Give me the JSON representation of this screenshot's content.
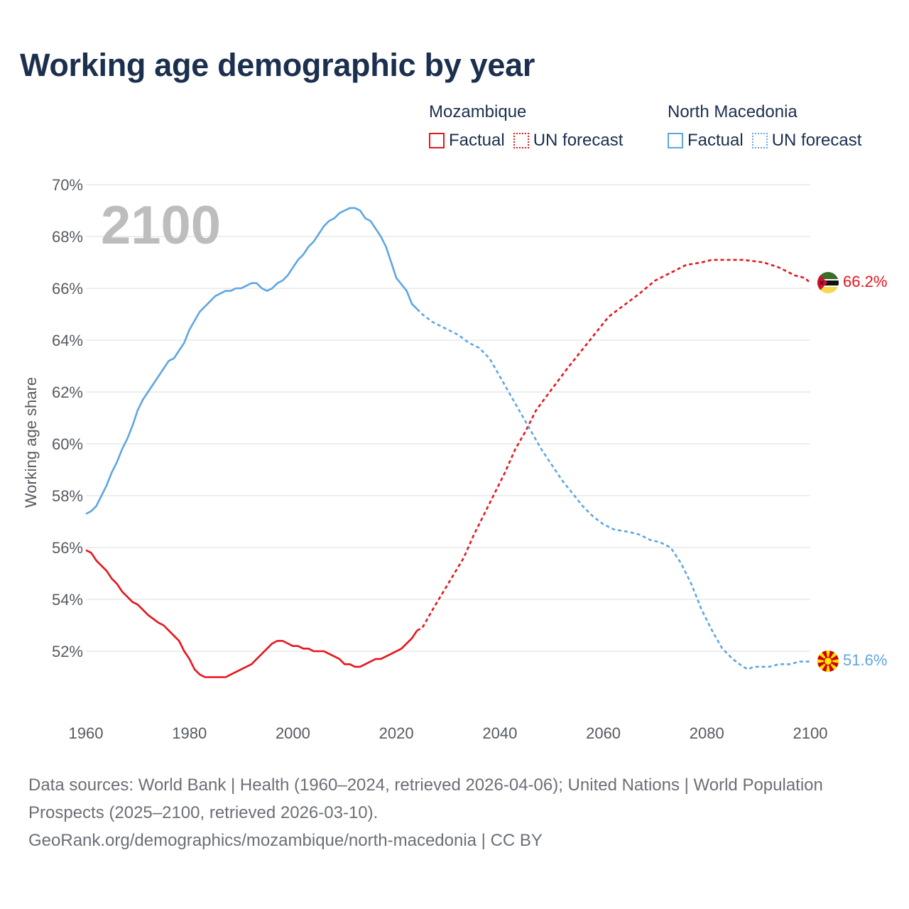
{
  "title": "Working age demographic by year",
  "legend": {
    "mozambique": {
      "name": "Mozambique",
      "factual_label": "Factual",
      "forecast_label": "UN forecast",
      "color": "#e8141c"
    },
    "north_macedonia": {
      "name": "North Macedonia",
      "factual_label": "Factual",
      "forecast_label": "UN forecast",
      "color": "#5ea6e3"
    }
  },
  "current_year": "2100",
  "end_labels": {
    "mozambique": "66.2%",
    "north_macedonia": "51.6%"
  },
  "source": {
    "line1": "Data sources: World Bank | Health (1960–2024, retrieved 2026-04-06); United Nations | World Population Prospects (2025–2100, retrieved 2026-03-10).",
    "line2": "GeoRank.org/demographics/mozambique/north-macedonia | CC BY"
  },
  "chart_data": {
    "type": "line",
    "title": "Working age demographic by year",
    "xlabel": "",
    "ylabel": "Working age share",
    "xlim": [
      1960,
      2102
    ],
    "ylim": [
      49.5,
      70
    ],
    "x_ticks": [
      "1960",
      "1980",
      "2000",
      "2020",
      "2040",
      "2060",
      "2080",
      "2100"
    ],
    "y_ticks": [
      "52%",
      "54%",
      "56%",
      "58%",
      "60%",
      "62%",
      "64%",
      "66%",
      "68%",
      "70%"
    ],
    "grid": true,
    "factual_range": [
      1960,
      2024
    ],
    "forecast_range": [
      2025,
      2100
    ],
    "series": [
      {
        "name": "Mozambique",
        "color": "#e8141c",
        "points": [
          [
            1960,
            55.9
          ],
          [
            1961,
            55.8
          ],
          [
            1962,
            55.5
          ],
          [
            1964,
            55.1
          ],
          [
            1965,
            54.8
          ],
          [
            1966,
            54.6
          ],
          [
            1967,
            54.3
          ],
          [
            1969,
            53.9
          ],
          [
            1970,
            53.8
          ],
          [
            1972,
            53.4
          ],
          [
            1974,
            53.1
          ],
          [
            1975,
            53.0
          ],
          [
            1976,
            52.8
          ],
          [
            1978,
            52.4
          ],
          [
            1979,
            52.0
          ],
          [
            1980,
            51.7
          ],
          [
            1981,
            51.3
          ],
          [
            1982,
            51.1
          ],
          [
            1983,
            51.0
          ],
          [
            1987,
            51.0
          ],
          [
            1989,
            51.2
          ],
          [
            1992,
            51.5
          ],
          [
            1994,
            51.9
          ],
          [
            1996,
            52.3
          ],
          [
            1997,
            52.4
          ],
          [
            1998,
            52.4
          ],
          [
            2000,
            52.2
          ],
          [
            2001,
            52.2
          ],
          [
            2002,
            52.1
          ],
          [
            2003,
            52.1
          ],
          [
            2004,
            52.0
          ],
          [
            2006,
            52.0
          ],
          [
            2007,
            51.9
          ],
          [
            2009,
            51.7
          ],
          [
            2010,
            51.5
          ],
          [
            2011,
            51.5
          ],
          [
            2012,
            51.4
          ],
          [
            2013,
            51.4
          ],
          [
            2015,
            51.6
          ],
          [
            2016,
            51.7
          ],
          [
            2017,
            51.7
          ],
          [
            2019,
            51.9
          ],
          [
            2021,
            52.1
          ],
          [
            2022,
            52.3
          ],
          [
            2023,
            52.5
          ],
          [
            2024,
            52.8
          ],
          [
            2025,
            52.9
          ],
          [
            2027,
            53.6
          ],
          [
            2030,
            54.6
          ],
          [
            2033,
            55.6
          ],
          [
            2035,
            56.5
          ],
          [
            2037,
            57.3
          ],
          [
            2039,
            58.1
          ],
          [
            2041,
            58.9
          ],
          [
            2043,
            59.8
          ],
          [
            2045,
            60.5
          ],
          [
            2047,
            61.3
          ],
          [
            2050,
            62.1
          ],
          [
            2053,
            62.9
          ],
          [
            2055,
            63.4
          ],
          [
            2057,
            63.9
          ],
          [
            2059,
            64.4
          ],
          [
            2061,
            64.9
          ],
          [
            2063,
            65.2
          ],
          [
            2065,
            65.5
          ],
          [
            2067,
            65.8
          ],
          [
            2070,
            66.3
          ],
          [
            2073,
            66.6
          ],
          [
            2076,
            66.9
          ],
          [
            2079,
            67.0
          ],
          [
            2081,
            67.1
          ],
          [
            2087,
            67.1
          ],
          [
            2091,
            67.0
          ],
          [
            2094,
            66.8
          ],
          [
            2097,
            66.5
          ],
          [
            2099,
            66.4
          ],
          [
            2100,
            66.2
          ]
        ]
      },
      {
        "name": "North Macedonia",
        "color": "#5ea6e3",
        "points": [
          [
            1960,
            57.3
          ],
          [
            1961,
            57.4
          ],
          [
            1962,
            57.6
          ],
          [
            1963,
            58.0
          ],
          [
            1964,
            58.4
          ],
          [
            1965,
            58.9
          ],
          [
            1966,
            59.3
          ],
          [
            1967,
            59.8
          ],
          [
            1968,
            60.2
          ],
          [
            1969,
            60.7
          ],
          [
            1970,
            61.3
          ],
          [
            1971,
            61.7
          ],
          [
            1972,
            62.0
          ],
          [
            1974,
            62.6
          ],
          [
            1976,
            63.2
          ],
          [
            1977,
            63.3
          ],
          [
            1979,
            63.9
          ],
          [
            1980,
            64.4
          ],
          [
            1982,
            65.1
          ],
          [
            1984,
            65.5
          ],
          [
            1985,
            65.7
          ],
          [
            1987,
            65.9
          ],
          [
            1988,
            65.9
          ],
          [
            1989,
            66.0
          ],
          [
            1990,
            66.0
          ],
          [
            1992,
            66.2
          ],
          [
            1993,
            66.2
          ],
          [
            1994,
            66.0
          ],
          [
            1995,
            65.9
          ],
          [
            1996,
            66.0
          ],
          [
            1997,
            66.2
          ],
          [
            1998,
            66.3
          ],
          [
            1999,
            66.5
          ],
          [
            2001,
            67.1
          ],
          [
            2002,
            67.3
          ],
          [
            2003,
            67.6
          ],
          [
            2004,
            67.8
          ],
          [
            2005,
            68.1
          ],
          [
            2006,
            68.4
          ],
          [
            2007,
            68.6
          ],
          [
            2008,
            68.7
          ],
          [
            2009,
            68.9
          ],
          [
            2010,
            69.0
          ],
          [
            2011,
            69.1
          ],
          [
            2012,
            69.1
          ],
          [
            2013,
            69.0
          ],
          [
            2014,
            68.7
          ],
          [
            2015,
            68.6
          ],
          [
            2016,
            68.3
          ],
          [
            2017,
            68.0
          ],
          [
            2018,
            67.6
          ],
          [
            2019,
            67.0
          ],
          [
            2020,
            66.4
          ],
          [
            2022,
            65.9
          ],
          [
            2023,
            65.4
          ],
          [
            2024,
            65.2
          ],
          [
            2025,
            65.0
          ],
          [
            2027,
            64.7
          ],
          [
            2030,
            64.4
          ],
          [
            2032,
            64.2
          ],
          [
            2034,
            63.9
          ],
          [
            2036,
            63.7
          ],
          [
            2038,
            63.3
          ],
          [
            2040,
            62.6
          ],
          [
            2042,
            61.9
          ],
          [
            2044,
            61.2
          ],
          [
            2046,
            60.5
          ],
          [
            2048,
            59.8
          ],
          [
            2050,
            59.2
          ],
          [
            2052,
            58.6
          ],
          [
            2054,
            58.1
          ],
          [
            2056,
            57.6
          ],
          [
            2058,
            57.2
          ],
          [
            2060,
            56.9
          ],
          [
            2062,
            56.7
          ],
          [
            2065,
            56.6
          ],
          [
            2067,
            56.5
          ],
          [
            2069,
            56.3
          ],
          [
            2071,
            56.2
          ],
          [
            2073,
            56.0
          ],
          [
            2075,
            55.4
          ],
          [
            2077,
            54.6
          ],
          [
            2079,
            53.6
          ],
          [
            2081,
            52.8
          ],
          [
            2083,
            52.1
          ],
          [
            2085,
            51.7
          ],
          [
            2087,
            51.4
          ],
          [
            2088,
            51.3
          ],
          [
            2089,
            51.4
          ],
          [
            2092,
            51.4
          ],
          [
            2094,
            51.5
          ],
          [
            2096,
            51.5
          ],
          [
            2098,
            51.6
          ],
          [
            2100,
            51.6
          ]
        ]
      }
    ]
  }
}
